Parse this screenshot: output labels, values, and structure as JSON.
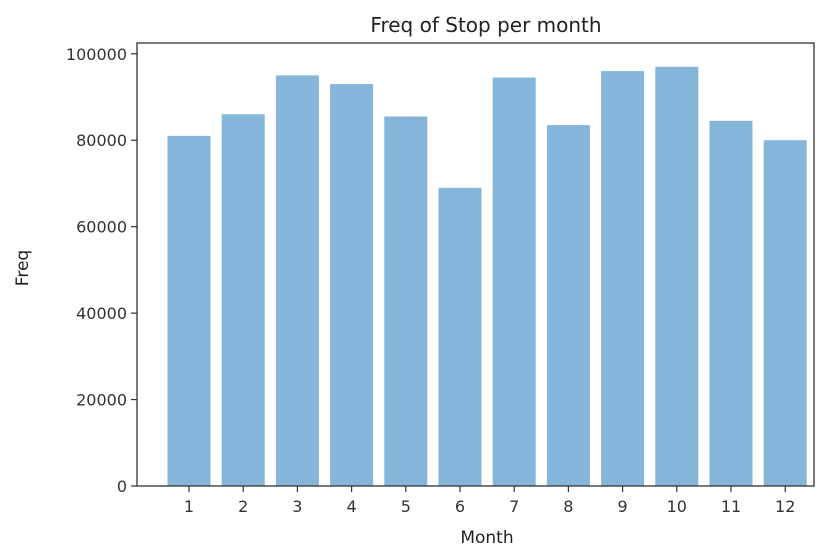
{
  "chart_data": {
    "type": "bar",
    "title": "Freq of Stop per month",
    "xlabel": "Month",
    "ylabel": "Freq",
    "categories": [
      "1",
      "2",
      "3",
      "4",
      "5",
      "6",
      "7",
      "8",
      "9",
      "10",
      "11",
      "12"
    ],
    "values": [
      81000,
      86000,
      95000,
      93000,
      85500,
      69000,
      94500,
      83500,
      96000,
      97000,
      84500,
      80000
    ],
    "ylim": [
      0,
      102500
    ],
    "yticks": [
      "0",
      "20000",
      "40000",
      "60000",
      "80000",
      "100000"
    ],
    "ytick_values": [
      0,
      20000,
      40000,
      60000,
      80000,
      100000
    ],
    "grid": false,
    "legend": "none",
    "bar_color": "#86b5da"
  }
}
